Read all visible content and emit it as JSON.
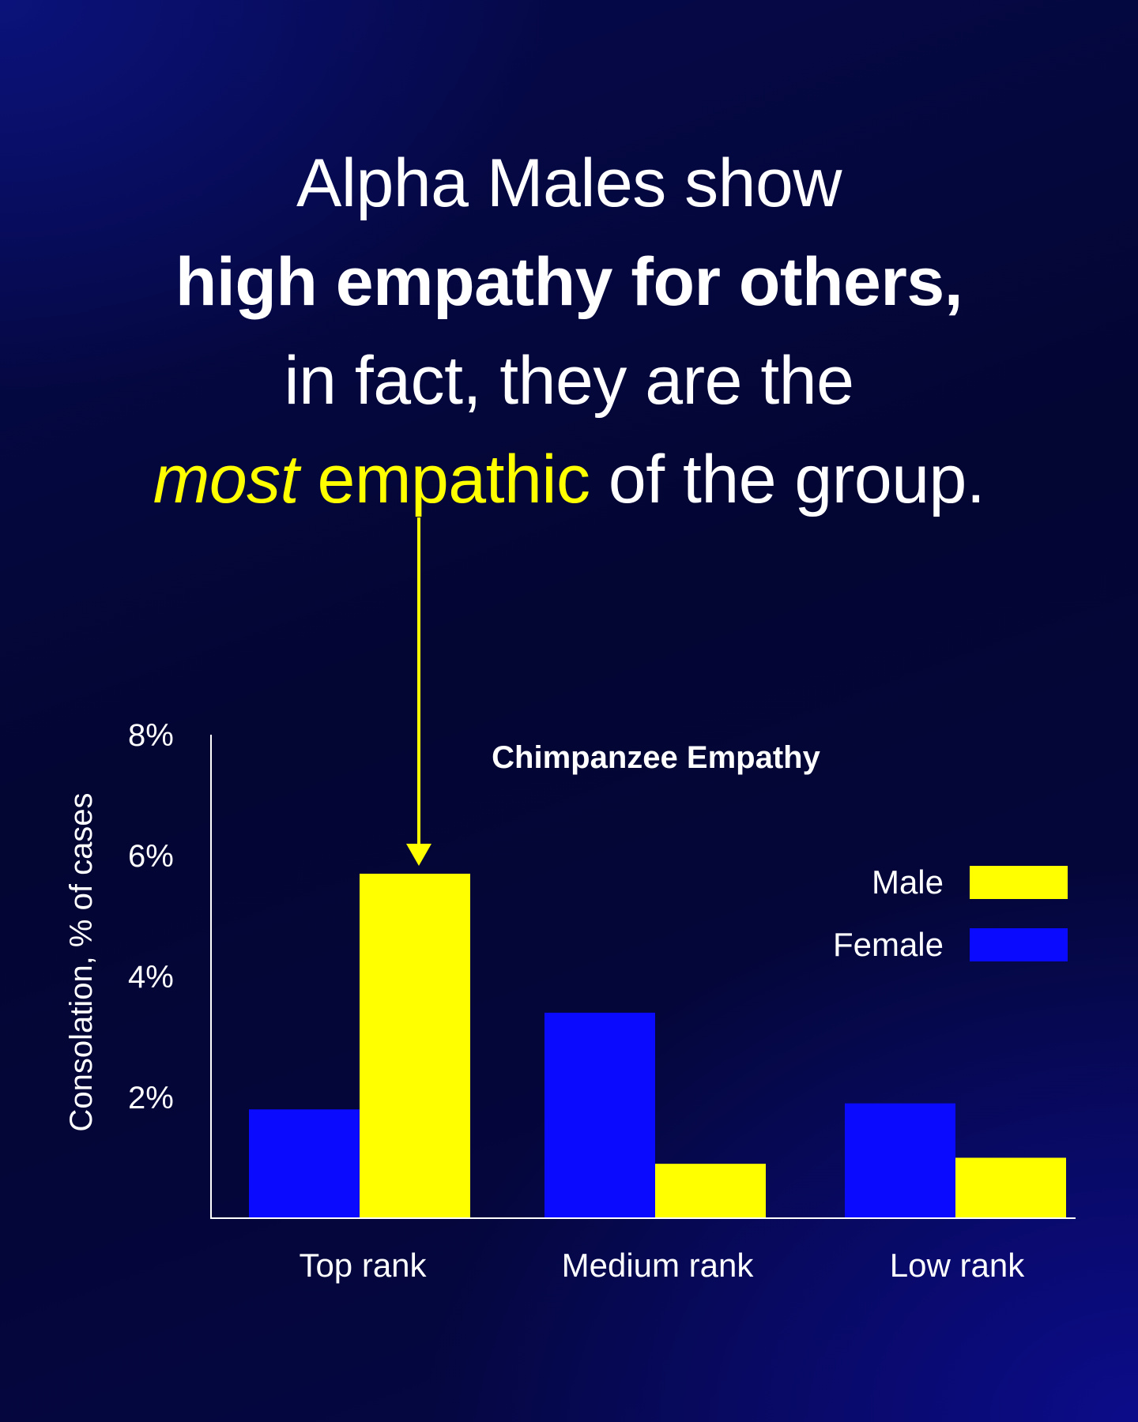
{
  "headline": {
    "line1": "Alpha Males show",
    "line2": "high empathy for others,",
    "line3": "in fact, they are the",
    "line4_emphasis": "most",
    "line4_accent": "empathic",
    "line4_rest": "of the group."
  },
  "colors": {
    "male": "#ffff00",
    "female": "#0a0aff",
    "accent": "#ffff00",
    "text": "#ffffff"
  },
  "chart_data": {
    "type": "bar",
    "title": "Chimpanzee Empathy",
    "ylabel": "Consolation, % of cases",
    "xlabel": "",
    "categories": [
      "Top rank",
      "Medium rank",
      "Low rank"
    ],
    "y_ticks": [
      "2%",
      "4%",
      "6%",
      "8%"
    ],
    "ylim": [
      0,
      8
    ],
    "legend_position": "right",
    "series": [
      {
        "name": "Female",
        "values": [
          1.8,
          3.4,
          1.9
        ]
      },
      {
        "name": "Male",
        "values": [
          5.7,
          0.9,
          1.0
        ]
      }
    ],
    "grid": false
  }
}
